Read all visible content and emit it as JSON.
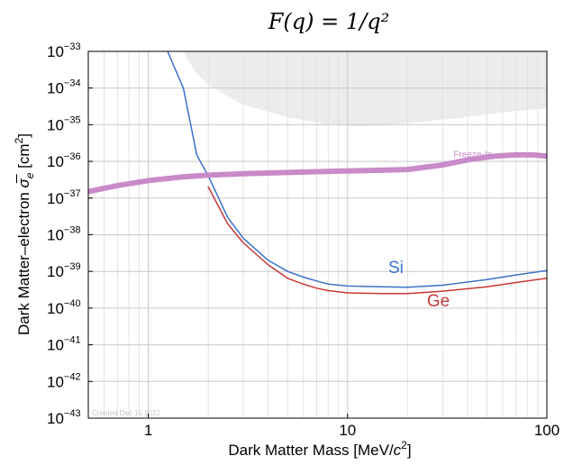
{
  "chart_data": {
    "type": "line",
    "title": "F(q) = 1/q²",
    "xlabel": "Dark Matter Mass [MeV/c²]",
    "ylabel": "Dark Matter–electron σ̅ₑ [cm²]",
    "x_scale": "log",
    "y_scale": "log",
    "xlim": [
      0.5,
      100
    ],
    "ylim": [
      1e-43,
      1e-33
    ],
    "x_ticks": [
      {
        "value": 1,
        "label": "1"
      },
      {
        "value": 10,
        "label": "10"
      },
      {
        "value": 100,
        "label": "100"
      }
    ],
    "y_ticks": [
      {
        "value": 1e-33,
        "base": "10",
        "exp": "−33"
      },
      {
        "value": 1e-34,
        "base": "10",
        "exp": "−34"
      },
      {
        "value": 1e-35,
        "base": "10",
        "exp": "−35"
      },
      {
        "value": 1e-36,
        "base": "10",
        "exp": "−36"
      },
      {
        "value": 1e-37,
        "base": "10",
        "exp": "−37"
      },
      {
        "value": 1e-38,
        "base": "10",
        "exp": "−38"
      },
      {
        "value": 1e-39,
        "base": "10",
        "exp": "−39"
      },
      {
        "value": 1e-40,
        "base": "10",
        "exp": "−40"
      },
      {
        "value": 1e-41,
        "base": "10",
        "exp": "−41"
      },
      {
        "value": 1e-42,
        "base": "10",
        "exp": "−42"
      },
      {
        "value": 1e-43,
        "base": "10",
        "exp": "−43"
      }
    ],
    "grid": true,
    "excluded_region": {
      "color": "#ececec",
      "lower_boundary": [
        [
          1.5,
          1e-33
        ],
        [
          1.7,
          3e-34
        ],
        [
          2,
          1.2e-34
        ],
        [
          3,
          3.5e-35
        ],
        [
          5,
          1.6e-35
        ],
        [
          8,
          1e-35
        ],
        [
          12,
          9e-36
        ],
        [
          20,
          1.1e-35
        ],
        [
          35,
          1.5e-35
        ],
        [
          60,
          2.2e-35
        ],
        [
          100,
          2.8e-35
        ]
      ],
      "upper_boundary": [
        [
          1.5,
          1e-33
        ],
        [
          100,
          1e-33
        ]
      ]
    },
    "series": [
      {
        "name": "Si",
        "color": "#3a72c8",
        "points": [
          [
            1.25,
            1e-33
          ],
          [
            1.5,
            1e-34
          ],
          [
            1.75,
            1.5e-36
          ],
          [
            2,
            4e-37
          ],
          [
            2.5,
            3e-38
          ],
          [
            3,
            8e-39
          ],
          [
            4,
            2e-39
          ],
          [
            5,
            1e-39
          ],
          [
            6,
            7e-40
          ],
          [
            7,
            5.5e-40
          ],
          [
            8,
            4.5e-40
          ],
          [
            10,
            4e-40
          ],
          [
            15,
            3.8e-40
          ],
          [
            20,
            3.7e-40
          ],
          [
            30,
            4.2e-40
          ],
          [
            50,
            6e-40
          ],
          [
            70,
            8e-40
          ],
          [
            100,
            1.05e-39
          ]
        ]
      },
      {
        "name": "Ge",
        "color": "#c83838",
        "points": [
          [
            2,
            2e-37
          ],
          [
            2.5,
            2e-38
          ],
          [
            3,
            6e-39
          ],
          [
            4,
            1.5e-39
          ],
          [
            5,
            6.5e-40
          ],
          [
            6,
            4.5e-40
          ],
          [
            7,
            3.5e-40
          ],
          [
            8,
            3e-40
          ],
          [
            10,
            2.6e-40
          ],
          [
            15,
            2.5e-40
          ],
          [
            20,
            2.5e-40
          ],
          [
            30,
            2.9e-40
          ],
          [
            50,
            3.8e-40
          ],
          [
            70,
            5e-40
          ],
          [
            100,
            6.5e-40
          ]
        ]
      },
      {
        "name": "Freeze-In",
        "color": "#c98ac9",
        "points": [
          [
            0.5,
            1.5e-37
          ],
          [
            0.7,
            2.2e-37
          ],
          [
            1,
            3e-37
          ],
          [
            1.5,
            3.8e-37
          ],
          [
            2,
            4.2e-37
          ],
          [
            3,
            4.6e-37
          ],
          [
            5,
            5e-37
          ],
          [
            10,
            5.5e-37
          ],
          [
            20,
            6e-37
          ],
          [
            30,
            8e-37
          ],
          [
            40,
            1.1e-36
          ],
          [
            55,
            1.4e-36
          ],
          [
            70,
            1.5e-36
          ],
          [
            85,
            1.5e-36
          ],
          [
            100,
            1.4e-36
          ]
        ]
      }
    ],
    "annotations": [
      {
        "text": "Si",
        "color": "#3a72c8",
        "x": 16,
        "y": 9e-40
      },
      {
        "text": "Ge",
        "color": "#c83838",
        "x": 25,
        "y": 1.1e-40
      },
      {
        "text": "Freeze-In",
        "color": "#c98ac9",
        "x": 34,
        "y": 1.3e-36
      },
      {
        "text": "Created Dec 15 2022",
        "color": "#c8c8c8",
        "x": 0.5,
        "y": 1.2e-43
      }
    ]
  }
}
